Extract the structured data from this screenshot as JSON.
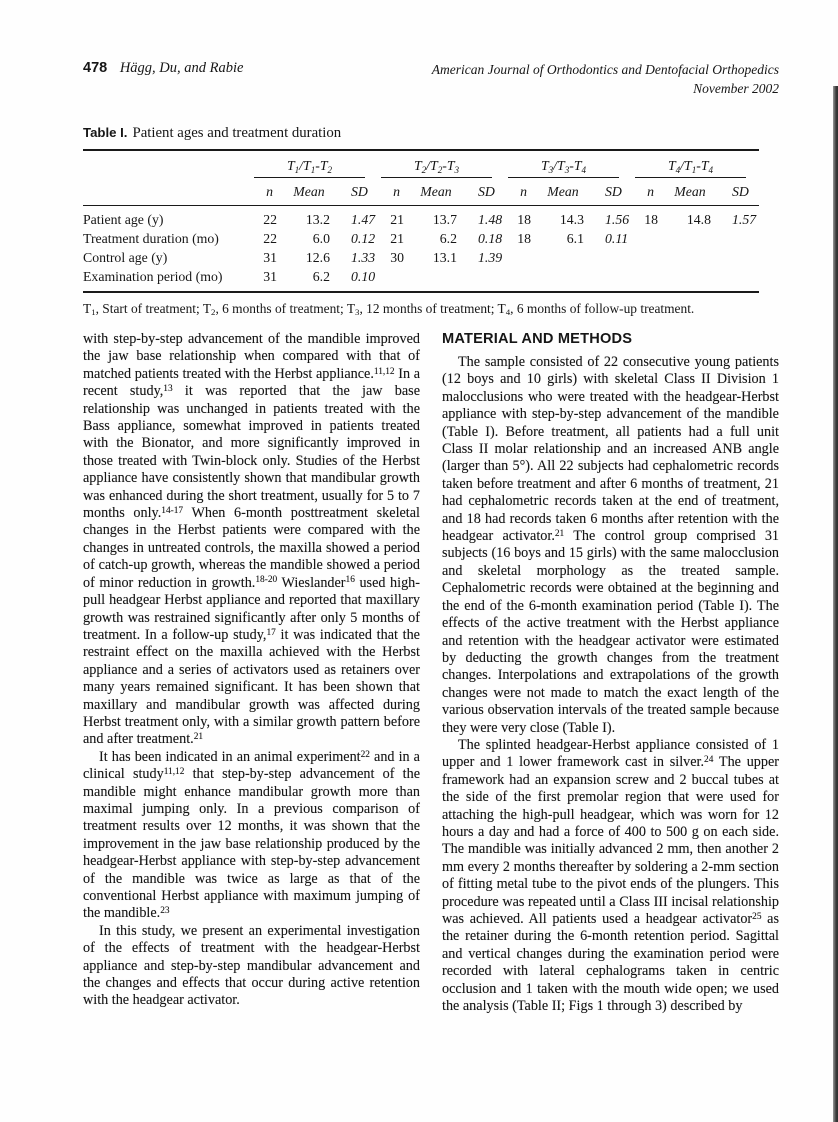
{
  "page": {
    "header": {
      "page_number": "478",
      "authors": "Hägg, Du, and Rabie",
      "journal": "American Journal of Orthodontics and Dentofacial Orthopedics",
      "issue": "November 2002"
    },
    "table": {
      "label": "Table I.",
      "title": "Patient ages and treatment duration",
      "col_groups": [
        "T_{1}/T_{1}-T_{2}",
        "T_{2}/T_{2}-T_{3}",
        "T_{3}/T_{3}-T_{4}",
        "T_{4}/T_{1}-T_{4}"
      ],
      "sub_headers": [
        "n",
        "Mean",
        "SD"
      ],
      "rows": [
        {
          "label": "Patient age (y)",
          "groups": [
            [
              "22",
              "13.2",
              "1.47"
            ],
            [
              "21",
              "13.7",
              "1.48"
            ],
            [
              "18",
              "14.3",
              "1.56"
            ],
            [
              "18",
              "14.8",
              "1.57"
            ]
          ]
        },
        {
          "label": "Treatment duration (mo)",
          "groups": [
            [
              "22",
              "6.0",
              "0.12"
            ],
            [
              "21",
              "6.2",
              "0.18"
            ],
            [
              "18",
              "6.1",
              "0.11"
            ],
            [
              "",
              "",
              ""
            ]
          ]
        },
        {
          "label": "Control age (y)",
          "groups": [
            [
              "31",
              "12.6",
              "1.33"
            ],
            [
              "30",
              "13.1",
              "1.39"
            ],
            [
              "",
              "",
              ""
            ],
            [
              "",
              "",
              ""
            ]
          ]
        },
        {
          "label": "Examination period (mo)",
          "groups": [
            [
              "31",
              "6.2",
              "0.10"
            ],
            [
              "",
              "",
              ""
            ],
            [
              "",
              "",
              ""
            ],
            [
              "",
              "",
              ""
            ]
          ]
        }
      ],
      "footnote": "T_{1}, Start of treatment; T_{2}, 6 months of treatment; T_{3}, 12 months of treatment; T_{4}, 6 months of follow-up treatment."
    },
    "article": {
      "left_column": {
        "paragraphs": [
          {
            "indent": false,
            "text": "with step-by-step advancement of the mandible improved the jaw base relationship when compared with that of matched patients treated with the Herbst appliance.^{11,12} In a recent study,^{13} it was reported that the jaw base relationship was unchanged in patients treated with the Bass appliance, somewhat improved in patients treated with the Bionator, and more significantly improved in those treated with Twin-block only. Studies of the Herbst appliance have consistently shown that mandibular growth was enhanced during the short treatment, usually for 5 to 7 months only.^{14-17} When 6-month posttreatment skeletal changes in the Herbst patients were compared with the changes in untreated controls, the maxilla showed a period of catch-up growth, whereas the mandible showed a period of minor reduction in growth.^{18-20} Wieslander^{16} used high-pull headgear Herbst appliance and reported that maxillary growth was restrained significantly after only 5 months of treatment. In a follow-up study,^{17} it was indicated that the restraint effect on the maxilla achieved with the Herbst appliance and a series of activators used as retainers over many years remained significant. It has been shown that maxillary and mandibular growth was affected during Herbst treatment only, with a similar growth pattern before and after treatment.^{21}"
          },
          {
            "indent": true,
            "text": "It has been indicated in an animal experiment^{22} and in a clinical study^{11,12} that step-by-step advancement of the mandible might enhance mandibular growth more than maximal jumping only. In a previous comparison of treatment results over 12 months, it was shown that the improvement in the jaw base relationship produced by the headgear-Herbst appliance with step-by-step advancement of the mandible was twice as large as that of the conventional Herbst appliance with maximum jumping of the mandible.^{23}"
          },
          {
            "indent": true,
            "text": "In this study, we present an experimental investigation of the effects of treatment with the headgear-Herbst appliance and step-by-step mandibular advancement and the changes and effects that occur during active retention with the headgear activator."
          }
        ]
      },
      "right_column": {
        "heading": "MATERIAL AND METHODS",
        "paragraphs": [
          {
            "indent": true,
            "text": "The sample consisted of 22 consecutive young patients (12 boys and 10 girls) with skeletal Class II Division 1 malocclusions who were treated with the headgear-Herbst appliance with step-by-step advancement of the mandible (Table I). Before treatment, all patients had a full unit Class II molar relationship and an increased ANB angle (larger than 5°). All 22 subjects had cephalometric records taken before treatment and after 6 months of treatment, 21 had cephalometric records taken at the end of treatment, and 18 had records taken 6 months after retention with the headgear activator.^{21} The control group comprised 31 subjects (16 boys and 15 girls) with the same malocclusion and skeletal morphology as the treated sample. Cephalometric records were obtained at the beginning and the end of the 6-month examination period (Table I). The effects of the active treatment with the Herbst appliance and retention with the headgear activator were estimated by deducting the growth changes from the treatment changes. Interpolations and extrapolations of the growth changes were not made to match the exact length of the various observation intervals of the treated sample because they were very close (Table I)."
          },
          {
            "indent": true,
            "text": "The splinted headgear-Herbst appliance consisted of 1 upper and 1 lower framework cast in silver.^{24} The upper framework had an expansion screw and 2 buccal tubes at the side of the first premolar region that were used for attaching the high-pull headgear, which was worn for 12 hours a day and had a force of 400 to 500 g on each side. The mandible was initially advanced 2 mm, then another 2 mm every 2 months thereafter by soldering a 2-mm section of fitting metal tube to the pivot ends of the plungers. This procedure was repeated until a Class III incisal relationship was achieved. All patients used a headgear activator^{25} as the retainer during the 6-month retention period. Sagittal and vertical changes during the examination period were recorded with lateral cephalograms taken in centric occlusion and 1 taken with the mouth wide open; we used the analysis (Table II; Figs 1 through 3) described by"
          }
        ]
      }
    },
    "colors": {
      "ink": "#161616",
      "rule": "#1a1a1a",
      "scan_edge": "#3c3c3c"
    }
  }
}
